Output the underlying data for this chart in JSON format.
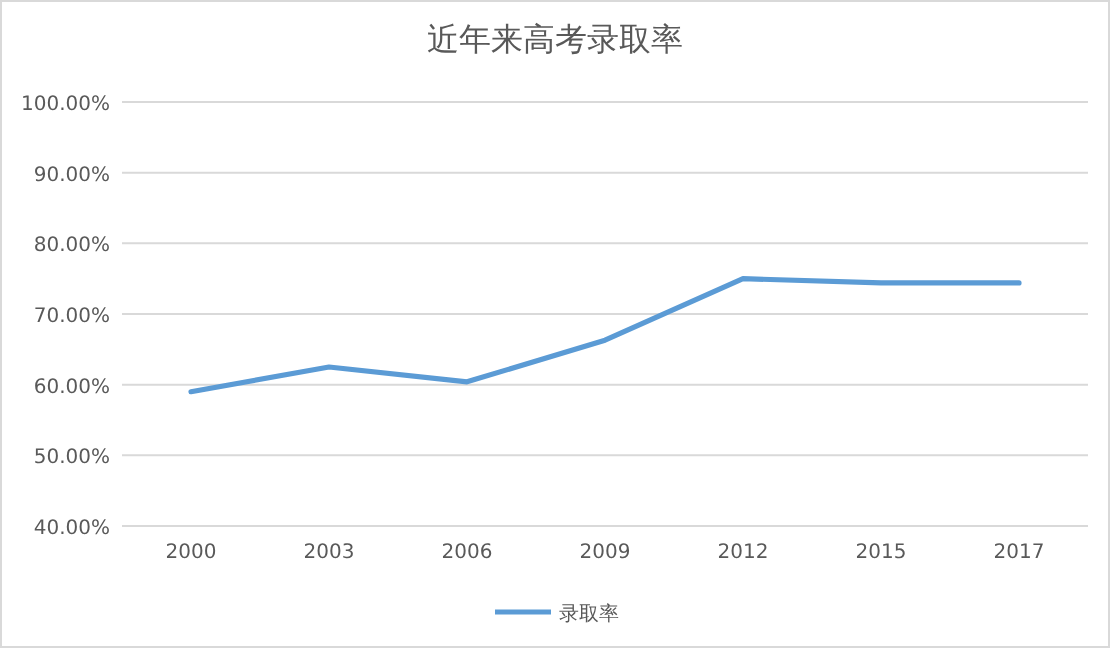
{
  "chart_data": {
    "type": "line",
    "title": "近年来高考录取率",
    "categories": [
      "2000",
      "2003",
      "2006",
      "2009",
      "2012",
      "2015",
      "2017"
    ],
    "series": [
      {
        "name": "录取率",
        "color": "#5b9bd5",
        "values": [
          59.0,
          62.5,
          60.4,
          66.3,
          75.0,
          74.4,
          74.4
        ]
      }
    ],
    "ylim": [
      40,
      100
    ],
    "yticks": [
      {
        "value": 40,
        "label": "40.00%"
      },
      {
        "value": 50,
        "label": "50.00%"
      },
      {
        "value": 60,
        "label": "60.00%"
      },
      {
        "value": 70,
        "label": "70.00%"
      },
      {
        "value": 80,
        "label": "80.00%"
      },
      {
        "value": 90,
        "label": "90.00%"
      },
      {
        "value": 100,
        "label": "100.00%"
      }
    ],
    "grid": "y",
    "legend": "bottom",
    "marker": "none",
    "line_style": "solid"
  }
}
